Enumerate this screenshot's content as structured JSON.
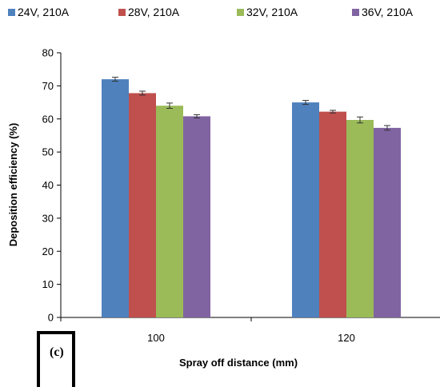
{
  "panel_label": "(c)",
  "chart_data": {
    "type": "bar",
    "categories": [
      "100",
      "120"
    ],
    "series": [
      {
        "name": "24V, 210A",
        "values": [
          72.0,
          65.0
        ],
        "errors": [
          0.6,
          0.6
        ],
        "color": "#4F81BD"
      },
      {
        "name": "28V, 210A",
        "values": [
          67.8,
          62.2
        ],
        "errors": [
          0.6,
          0.4
        ],
        "color": "#C0504D"
      },
      {
        "name": "32V, 210A",
        "values": [
          64.0,
          59.7
        ],
        "errors": [
          0.8,
          0.9
        ],
        "color": "#9BBB59"
      },
      {
        "name": "36V, 210A",
        "values": [
          60.8,
          57.3
        ],
        "errors": [
          0.5,
          0.7
        ],
        "color": "#8064A2"
      }
    ],
    "xlabel": "Spray off distance (mm)",
    "ylabel": "Deposition efficiency (%)",
    "ylim": [
      0,
      80
    ],
    "yticks": [
      0,
      10,
      20,
      30,
      40,
      50,
      60,
      70,
      80
    ],
    "grid": false,
    "legend_position": "top"
  }
}
